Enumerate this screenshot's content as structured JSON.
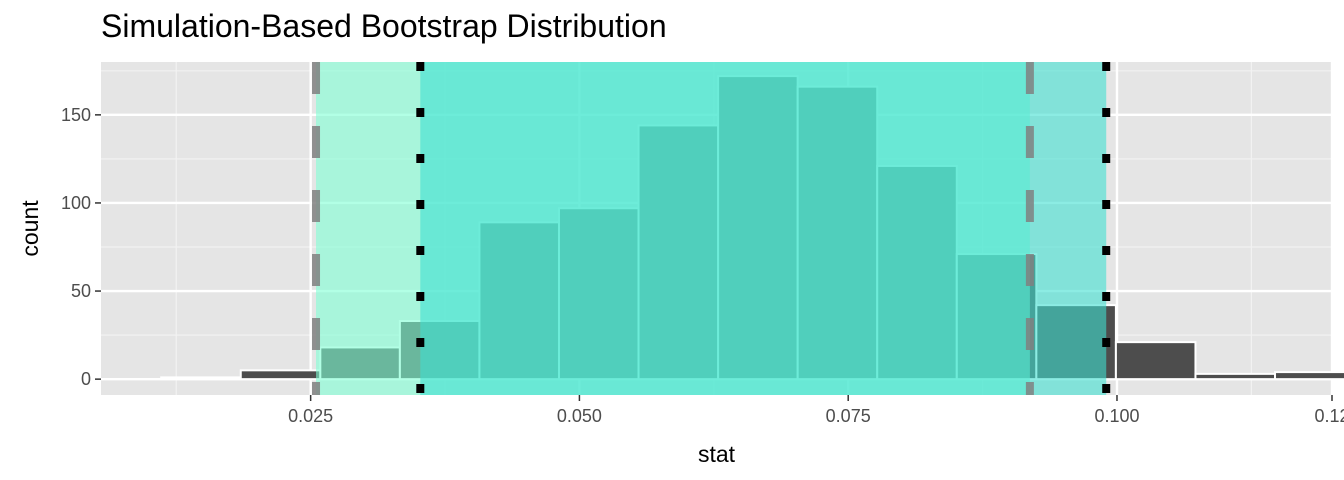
{
  "chart_data": {
    "type": "bar",
    "title": "Simulation-Based Bootstrap Distribution",
    "xlabel": "stat",
    "ylabel": "count",
    "xlim": [
      0.0055,
      0.12
    ],
    "ylim": [
      -9,
      180
    ],
    "x_ticks": [
      0.025,
      0.05,
      0.075,
      0.1,
      0.12
    ],
    "x_tick_labels": [
      "0.025",
      "0.050",
      "0.075",
      "0.100",
      "0.12"
    ],
    "y_ticks": [
      0,
      50,
      100,
      150
    ],
    "y_tick_labels": [
      "0",
      "50",
      "100",
      "150"
    ],
    "grid": true,
    "background": "#e5e5e5",
    "bar_color": "#4d4d4d",
    "bar_outline": "#ffffff",
    "bins": [
      {
        "xmin": 0.0111,
        "xmax": 0.0185,
        "count": 1
      },
      {
        "xmin": 0.0185,
        "xmax": 0.0259,
        "count": 5
      },
      {
        "xmin": 0.0259,
        "xmax": 0.0333,
        "count": 18
      },
      {
        "xmin": 0.0333,
        "xmax": 0.0407,
        "count": 33
      },
      {
        "xmin": 0.0407,
        "xmax": 0.0481,
        "count": 89
      },
      {
        "xmin": 0.0481,
        "xmax": 0.0555,
        "count": 97
      },
      {
        "xmin": 0.0555,
        "xmax": 0.0629,
        "count": 144
      },
      {
        "xmin": 0.0629,
        "xmax": 0.0703,
        "count": 172
      },
      {
        "xmin": 0.0703,
        "xmax": 0.0777,
        "count": 166
      },
      {
        "xmin": 0.0777,
        "xmax": 0.0851,
        "count": 121
      },
      {
        "xmin": 0.0851,
        "xmax": 0.0925,
        "count": 71
      },
      {
        "xmin": 0.0925,
        "xmax": 0.0999,
        "count": 42
      },
      {
        "xmin": 0.0999,
        "xmax": 0.1073,
        "count": 21
      },
      {
        "xmin": 0.1073,
        "xmax": 0.1147,
        "count": 3
      },
      {
        "xmin": 0.1147,
        "xmax": 0.1221,
        "count": 4
      }
    ],
    "intervals": [
      {
        "lower": 0.0255,
        "upper": 0.0919,
        "fill": "#7fffd4",
        "line_style": "dashed",
        "line_color": "#808080"
      },
      {
        "lower": 0.0352,
        "upper": 0.099,
        "fill": "#40e0d0",
        "line_style": "dotted",
        "line_color": "#000000"
      }
    ]
  }
}
